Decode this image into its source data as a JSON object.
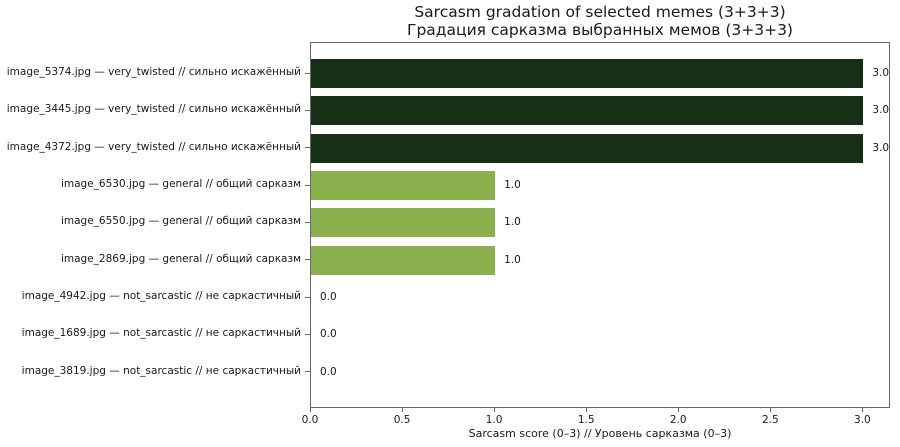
{
  "title": {
    "line1": "Sarcasm gradation of selected memes (3+3+3)",
    "line2": "Градация сарказма выбранных мемов (3+3+3)"
  },
  "chart_data": {
    "type": "bar",
    "orientation": "horizontal",
    "title": "Sarcasm gradation of selected memes (3+3+3)\nГрадация сарказма выбранных мемов (3+3+3)",
    "xlabel": "Sarcasm score (0–3) // Уровень сарказма (0–3)",
    "ylabel": "",
    "xlim": [
      0,
      3.15
    ],
    "grid": false,
    "legend": null,
    "categories": [
      "image_5374.jpg — very_twisted // сильно искажённый",
      "image_3445.jpg — very_twisted // сильно искажённый",
      "image_4372.jpg — very_twisted // сильно искажённый",
      "image_6530.jpg — general // общий сарказм",
      "image_6550.jpg — general // общий сарказм",
      "image_2869.jpg — general // общий сарказм",
      "image_4942.jpg — not_sarcastic // не саркастичный",
      "image_1689.jpg — not_sarcastic // не саркастичный",
      "image_3819.jpg — not_sarcastic // не саркастичный"
    ],
    "values": [
      3.0,
      3.0,
      3.0,
      1.0,
      1.0,
      1.0,
      0.0,
      0.0,
      0.0
    ],
    "value_labels": [
      "3.0",
      "3.0",
      "3.0",
      "1.0",
      "1.0",
      "1.0",
      "0.0",
      "0.0",
      "0.0"
    ],
    "bar_colors": [
      "#172e17",
      "#172e17",
      "#172e17",
      "#8bb04d",
      "#8bb04d",
      "#8bb04d",
      null,
      null,
      null
    ],
    "xticks": [
      0.0,
      0.5,
      1.0,
      1.5,
      2.0,
      2.5,
      3.0
    ],
    "xtick_labels": [
      "0.0",
      "0.5",
      "1.0",
      "1.5",
      "2.0",
      "2.5",
      "3.0"
    ]
  },
  "colors": {
    "very_twisted_bar": "#172e17",
    "general_bar": "#8bb04d",
    "background": "#ffffff",
    "spine": "#686868",
    "text": "#1a1a1a"
  }
}
